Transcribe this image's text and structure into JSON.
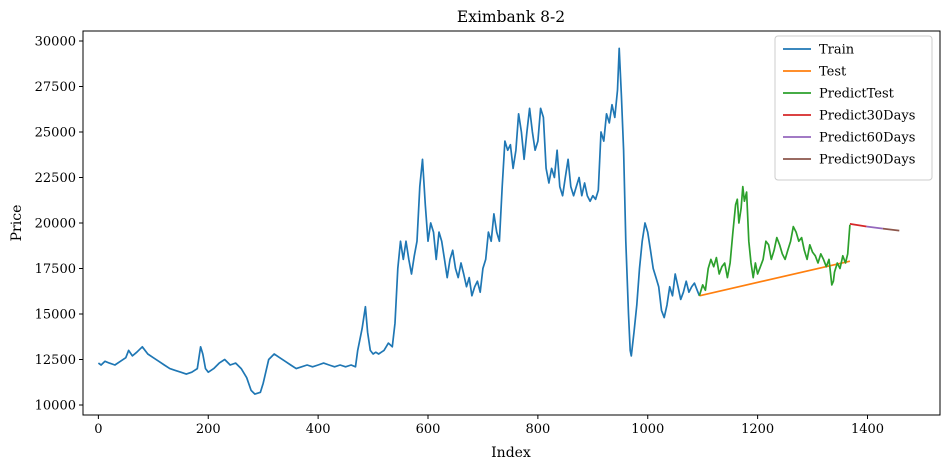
{
  "chart_data": {
    "type": "line",
    "title": "Eximbank 8-2",
    "xlabel": "Index",
    "ylabel": "Price",
    "xlim": [
      -28,
      1532
    ],
    "ylim": [
      9450,
      30550
    ],
    "x_ticks": [
      0,
      200,
      400,
      600,
      800,
      1000,
      1200,
      1400
    ],
    "y_ticks": [
      10000,
      12500,
      15000,
      17500,
      20000,
      22500,
      25000,
      27500,
      30000
    ],
    "grid": false,
    "legend_position": "top-right",
    "series": [
      {
        "name": "Train",
        "color": "#1f77b4",
        "x": [
          0,
          5,
          12,
          20,
          30,
          40,
          50,
          55,
          62,
          70,
          80,
          90,
          100,
          110,
          120,
          130,
          140,
          150,
          160,
          170,
          175,
          180,
          186,
          190,
          195,
          200,
          210,
          220,
          230,
          240,
          250,
          260,
          270,
          278,
          285,
          295,
          300,
          310,
          320,
          330,
          340,
          350,
          360,
          370,
          380,
          390,
          400,
          410,
          420,
          430,
          440,
          450,
          460,
          468,
          472,
          480,
          486,
          490,
          495,
          500,
          505,
          510,
          520,
          528,
          535,
          540,
          545,
          550,
          555,
          560,
          565,
          570,
          575,
          580,
          585,
          590,
          595,
          600,
          605,
          610,
          615,
          620,
          625,
          630,
          635,
          640,
          645,
          650,
          655,
          660,
          665,
          670,
          675,
          680,
          685,
          690,
          695,
          700,
          705,
          710,
          715,
          720,
          725,
          730,
          735,
          740,
          745,
          750,
          755,
          760,
          765,
          770,
          775,
          780,
          785,
          790,
          795,
          800,
          805,
          810,
          815,
          820,
          825,
          830,
          835,
          840,
          845,
          850,
          855,
          860,
          865,
          870,
          875,
          880,
          885,
          890,
          895,
          900,
          905,
          910,
          915,
          920,
          925,
          930,
          935,
          940,
          945,
          948,
          952,
          956,
          960,
          965,
          968,
          970,
          975,
          980,
          985,
          990,
          995,
          1000,
          1005,
          1010,
          1015,
          1020,
          1025,
          1030,
          1035,
          1040,
          1045,
          1050,
          1055,
          1060,
          1065,
          1070,
          1075,
          1080,
          1085,
          1090,
          1094
        ],
        "y": [
          12300,
          12200,
          12400,
          12300,
          12200,
          12400,
          12600,
          13000,
          12700,
          12900,
          13200,
          12800,
          12600,
          12400,
          12200,
          12000,
          11900,
          11800,
          11700,
          11800,
          11900,
          12000,
          13200,
          12800,
          12000,
          11800,
          12000,
          12300,
          12500,
          12200,
          12300,
          12000,
          11500,
          10800,
          10600,
          10700,
          11200,
          12500,
          12800,
          12600,
          12400,
          12200,
          12000,
          12100,
          12200,
          12100,
          12200,
          12300,
          12200,
          12100,
          12200,
          12100,
          12200,
          12100,
          13000,
          14200,
          15400,
          14000,
          13000,
          12800,
          12900,
          12800,
          13000,
          13400,
          13200,
          14500,
          17500,
          19000,
          18000,
          19000,
          18000,
          17200,
          18200,
          19000,
          22000,
          23500,
          21000,
          19000,
          20000,
          19500,
          18000,
          19500,
          19000,
          18000,
          17000,
          18000,
          18500,
          17500,
          17000,
          17800,
          17200,
          16500,
          17000,
          16000,
          16500,
          16800,
          16200,
          17500,
          18000,
          19500,
          19000,
          20500,
          19500,
          19000,
          22000,
          24500,
          24000,
          24300,
          23000,
          24000,
          26000,
          25000,
          23500,
          25000,
          26300,
          25000,
          24000,
          24500,
          26300,
          25800,
          23000,
          22200,
          23000,
          22500,
          24000,
          22000,
          21500,
          22500,
          23500,
          22000,
          21500,
          22000,
          22500,
          21500,
          22200,
          21500,
          21200,
          21500,
          21300,
          21800,
          25000,
          24500,
          26000,
          25500,
          26500,
          25800,
          27300,
          29600,
          27000,
          24000,
          19000,
          15000,
          13000,
          12700,
          14000,
          15500,
          17500,
          19000,
          20000,
          19500,
          18500,
          17500,
          17000,
          16500,
          15200,
          14800,
          15500,
          16500,
          16000,
          17200,
          16500,
          15800,
          16200,
          16800,
          16200,
          16500,
          16700,
          16300,
          16000
        ]
      },
      {
        "name": "Test",
        "color": "#ff7f0e",
        "x": [
          1094,
          1368
        ],
        "y": [
          16000,
          17900
        ]
      },
      {
        "name": "PredictTest",
        "color": "#2ca02c",
        "x": [
          1094,
          1100,
          1105,
          1110,
          1115,
          1120,
          1125,
          1130,
          1135,
          1140,
          1145,
          1150,
          1155,
          1160,
          1163,
          1166,
          1170,
          1173,
          1176,
          1180,
          1184,
          1188,
          1192,
          1196,
          1200,
          1205,
          1210,
          1215,
          1220,
          1225,
          1230,
          1235,
          1240,
          1245,
          1250,
          1255,
          1260,
          1265,
          1270,
          1275,
          1280,
          1285,
          1290,
          1295,
          1300,
          1305,
          1310,
          1315,
          1320,
          1325,
          1330,
          1335,
          1338,
          1340,
          1345,
          1350,
          1355,
          1360,
          1364,
          1368
        ],
        "y": [
          16000,
          16600,
          16300,
          17500,
          18000,
          17600,
          18100,
          17200,
          17600,
          17800,
          17000,
          17800,
          19500,
          21000,
          21300,
          20000,
          20800,
          22000,
          21200,
          21700,
          19000,
          17800,
          17000,
          17800,
          17200,
          17600,
          18000,
          19000,
          18800,
          18000,
          18500,
          19200,
          18800,
          18300,
          18000,
          18500,
          19000,
          19800,
          19500,
          19000,
          19200,
          18500,
          18000,
          18800,
          18400,
          18200,
          17800,
          18300,
          18000,
          17600,
          18000,
          16600,
          16800,
          17300,
          17800,
          17500,
          18200,
          17800,
          18300,
          19900
        ]
      },
      {
        "name": "Predict30Days",
        "color": "#d62728",
        "x": [
          1368,
          1398
        ],
        "y": [
          19950,
          19810
        ]
      },
      {
        "name": "Predict60Days",
        "color": "#9467bd",
        "x": [
          1398,
          1428
        ],
        "y": [
          19810,
          19690
        ]
      },
      {
        "name": "Predict90Days",
        "color": "#8c564b",
        "x": [
          1428,
          1458
        ],
        "y": [
          19690,
          19580
        ]
      }
    ]
  }
}
